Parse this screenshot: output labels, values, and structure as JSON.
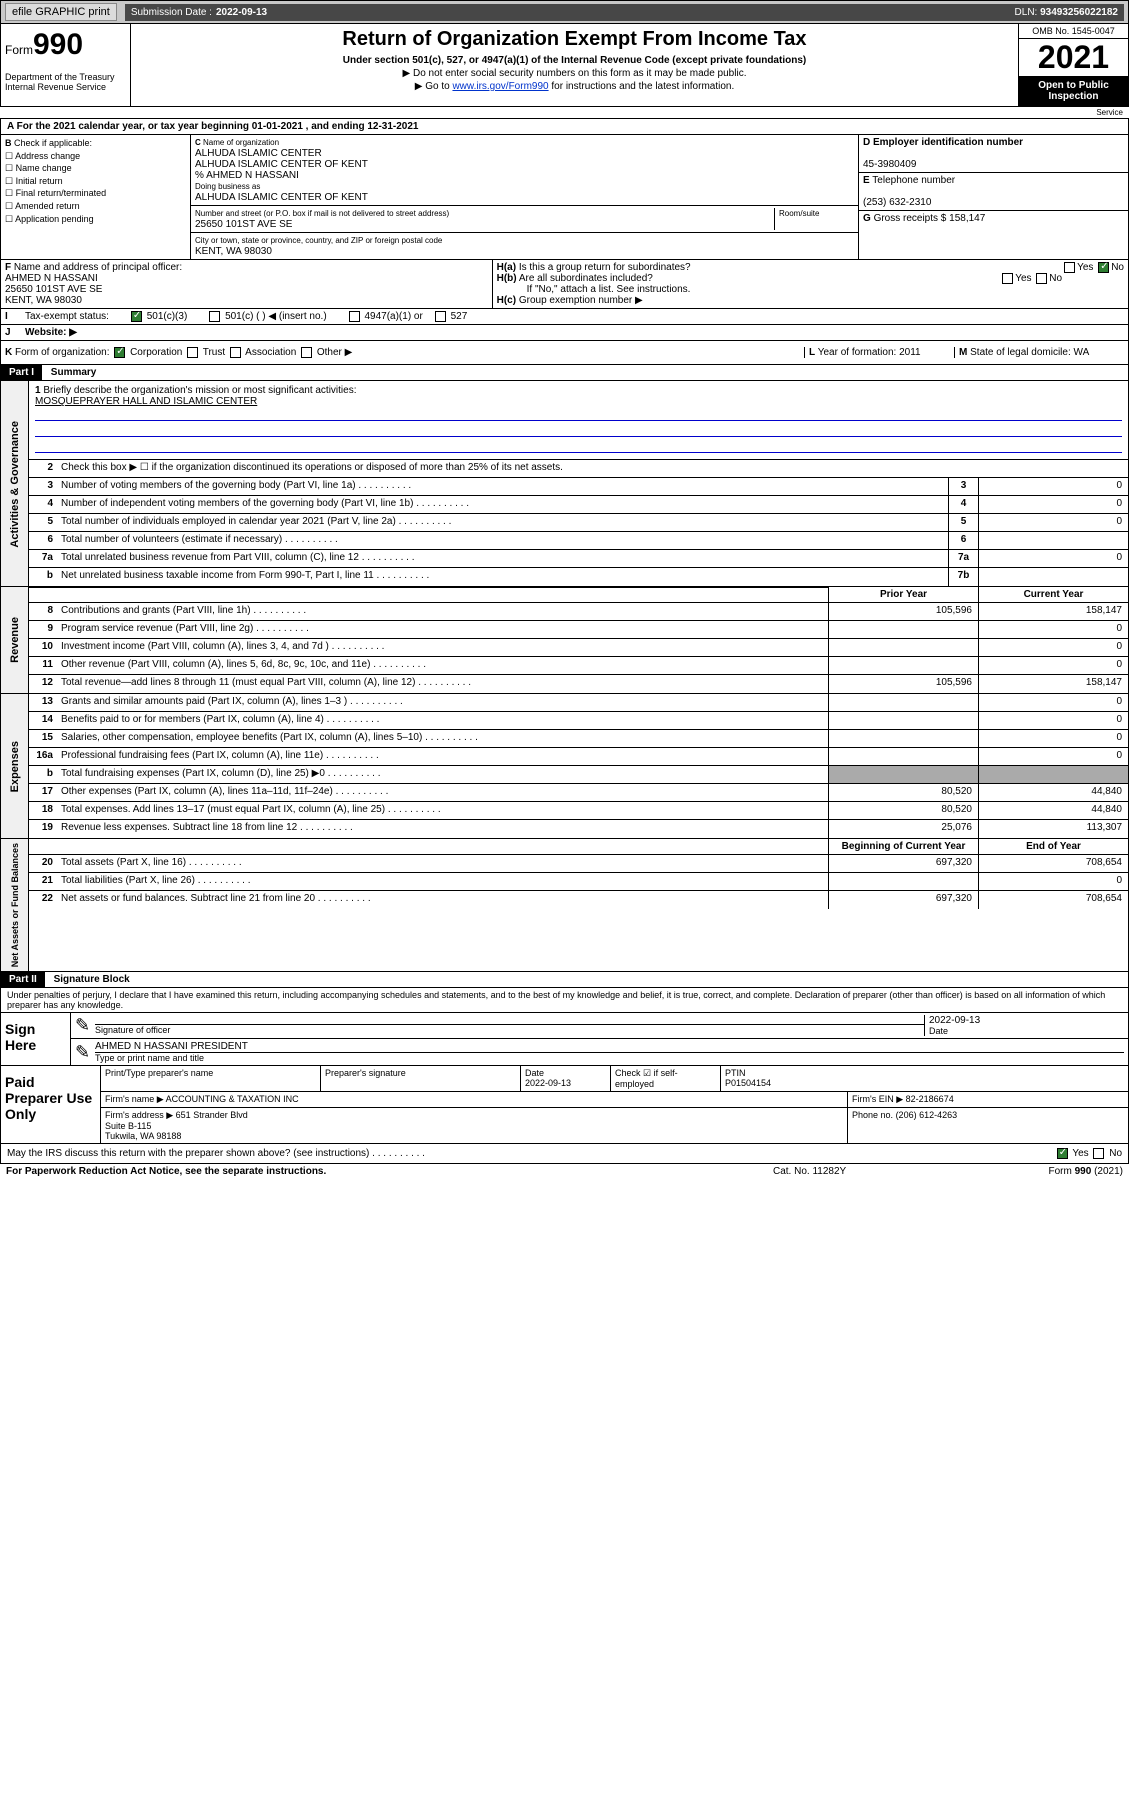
{
  "topbar": {
    "efile": "efile GRAPHIC print",
    "submission_label": "Submission Date :",
    "submission_date": "2022-09-13",
    "dln_label": "DLN:",
    "dln": "93493256022182"
  },
  "header": {
    "form_label": "Form",
    "form_number": "990",
    "dept": "Department of the Treasury",
    "irs": "Internal Revenue Service",
    "title": "Return of Organization Exempt From Income Tax",
    "sub": "Under section 501(c), 527, or 4947(a)(1) of the Internal Revenue Code (except private foundations)",
    "note1": "▶ Do not enter social security numbers on this form as it may be made public.",
    "note2_pre": "▶ Go to ",
    "note2_link": "www.irs.gov/Form990",
    "note2_post": " for instructions and the latest information.",
    "omb": "OMB No. 1545-0047",
    "year": "2021",
    "inspect": "Open to Public Inspection"
  },
  "period": {
    "text_a": "For the 2021 calendar year, or tax year beginning ",
    "begin": "01-01-2021",
    "text_b": " , and ending ",
    "end": "12-31-2021"
  },
  "b": {
    "label": "Check if applicable:",
    "items": [
      "Address change",
      "Name change",
      "Initial return",
      "Final return/terminated",
      "Amended return",
      "Application pending"
    ]
  },
  "c": {
    "name_label": "Name of organization",
    "name1": "ALHUDA ISLAMIC CENTER",
    "name2": "ALHUDA ISLAMIC CENTER OF KENT",
    "name3": "% AHMED N HASSANI",
    "dba_label": "Doing business as",
    "dba": "ALHUDA ISLAMIC CENTER OF KENT",
    "addr_label": "Number and street (or P.O. box if mail is not delivered to street address)",
    "room_label": "Room/suite",
    "addr": "25650 101ST AVE SE",
    "city_label": "City or town, state or province, country, and ZIP or foreign postal code",
    "city": "KENT, WA  98030"
  },
  "d": {
    "label": "Employer identification number",
    "value": "45-3980409"
  },
  "e": {
    "label": "Telephone number",
    "value": "(253) 632-2310"
  },
  "g": {
    "label": "Gross receipts $",
    "value": "158,147"
  },
  "f": {
    "label": "Name and address of principal officer:",
    "name": "AHMED N HASSANI",
    "addr": "25650 101ST AVE SE",
    "city": "KENT, WA  98030"
  },
  "h": {
    "a": "Is this a group return for subordinates?",
    "b": "Are all subordinates included?",
    "b_note": "If \"No,\" attach a list. See instructions.",
    "c": "Group exemption number ▶",
    "yes": "Yes",
    "no": "No"
  },
  "i": {
    "label": "Tax-exempt status:",
    "opts": [
      "501(c)(3)",
      "501(c) (  ) ◀ (insert no.)",
      "4947(a)(1) or",
      "527"
    ]
  },
  "j": {
    "label": "Website: ▶"
  },
  "k": {
    "label": "Form of organization:",
    "opts": [
      "Corporation",
      "Trust",
      "Association",
      "Other ▶"
    ]
  },
  "l": {
    "label": "Year of formation:",
    "value": "2011"
  },
  "m": {
    "label": "State of legal domicile:",
    "value": "WA"
  },
  "part1": {
    "hdr": "Part I",
    "title": "Summary",
    "q1": "Briefly describe the organization's mission or most significant activities:",
    "mission": "MOSQUEPRAYER HALL AND ISLAMIC CENTER",
    "q2": "Check this box ▶ ☐  if the organization discontinued its operations or disposed of more than 25% of its net assets.",
    "governance_label": "Activities & Governance",
    "revenue_label": "Revenue",
    "expenses_label": "Expenses",
    "netassets_label": "Net Assets or Fund Balances",
    "prior": "Prior Year",
    "current": "Current Year",
    "boy": "Beginning of Current Year",
    "eoy": "End of Year",
    "lines_gov": [
      {
        "n": "3",
        "t": "Number of voting members of the governing body (Part VI, line 1a)",
        "box": "3",
        "v": "0"
      },
      {
        "n": "4",
        "t": "Number of independent voting members of the governing body (Part VI, line 1b)",
        "box": "4",
        "v": "0"
      },
      {
        "n": "5",
        "t": "Total number of individuals employed in calendar year 2021 (Part V, line 2a)",
        "box": "5",
        "v": "0"
      },
      {
        "n": "6",
        "t": "Total number of volunteers (estimate if necessary)",
        "box": "6",
        "v": ""
      },
      {
        "n": "7a",
        "t": "Total unrelated business revenue from Part VIII, column (C), line 12",
        "box": "7a",
        "v": "0"
      },
      {
        "n": "b",
        "t": "Net unrelated business taxable income from Form 990-T, Part I, line 11",
        "box": "7b",
        "v": ""
      }
    ],
    "lines_rev": [
      {
        "n": "8",
        "t": "Contributions and grants (Part VIII, line 1h)",
        "p": "105,596",
        "c": "158,147"
      },
      {
        "n": "9",
        "t": "Program service revenue (Part VIII, line 2g)",
        "p": "",
        "c": "0"
      },
      {
        "n": "10",
        "t": "Investment income (Part VIII, column (A), lines 3, 4, and 7d )",
        "p": "",
        "c": "0"
      },
      {
        "n": "11",
        "t": "Other revenue (Part VIII, column (A), lines 5, 6d, 8c, 9c, 10c, and 11e)",
        "p": "",
        "c": "0"
      },
      {
        "n": "12",
        "t": "Total revenue—add lines 8 through 11 (must equal Part VIII, column (A), line 12)",
        "p": "105,596",
        "c": "158,147"
      }
    ],
    "lines_exp": [
      {
        "n": "13",
        "t": "Grants and similar amounts paid (Part IX, column (A), lines 1–3 )",
        "p": "",
        "c": "0"
      },
      {
        "n": "14",
        "t": "Benefits paid to or for members (Part IX, column (A), line 4)",
        "p": "",
        "c": "0"
      },
      {
        "n": "15",
        "t": "Salaries, other compensation, employee benefits (Part IX, column (A), lines 5–10)",
        "p": "",
        "c": "0"
      },
      {
        "n": "16a",
        "t": "Professional fundraising fees (Part IX, column (A), line 11e)",
        "p": "",
        "c": "0"
      },
      {
        "n": "b",
        "t": "Total fundraising expenses (Part IX, column (D), line 25) ▶0",
        "p": "shade",
        "c": "shade"
      },
      {
        "n": "17",
        "t": "Other expenses (Part IX, column (A), lines 11a–11d, 11f–24e)",
        "p": "80,520",
        "c": "44,840"
      },
      {
        "n": "18",
        "t": "Total expenses. Add lines 13–17 (must equal Part IX, column (A), line 25)",
        "p": "80,520",
        "c": "44,840"
      },
      {
        "n": "19",
        "t": "Revenue less expenses. Subtract line 18 from line 12",
        "p": "25,076",
        "c": "113,307"
      }
    ],
    "lines_net": [
      {
        "n": "20",
        "t": "Total assets (Part X, line 16)",
        "p": "697,320",
        "c": "708,654"
      },
      {
        "n": "21",
        "t": "Total liabilities (Part X, line 26)",
        "p": "",
        "c": "0"
      },
      {
        "n": "22",
        "t": "Net assets or fund balances. Subtract line 21 from line 20",
        "p": "697,320",
        "c": "708,654"
      }
    ]
  },
  "part2": {
    "hdr": "Part II",
    "title": "Signature Block",
    "decl": "Under penalties of perjury, I declare that I have examined this return, including accompanying schedules and statements, and to the best of my knowledge and belief, it is true, correct, and complete. Declaration of preparer (other than officer) is based on all information of which preparer has any knowledge.",
    "sign_here": "Sign Here",
    "sig_officer": "Signature of officer",
    "date": "Date",
    "date_val": "2022-09-13",
    "officer_name": "AHMED N HASSANI PRESIDENT",
    "type_name": "Type or print name and title",
    "paid": "Paid Preparer Use Only",
    "prep_name": "Print/Type preparer's name",
    "prep_sig": "Preparer's signature",
    "prep_date": "2022-09-13",
    "check_if": "Check ☑ if self-employed",
    "ptin_label": "PTIN",
    "ptin": "P01504154",
    "firm_name_label": "Firm's name   ▶",
    "firm_name": "ACCOUNTING & TAXATION INC",
    "firm_ein_label": "Firm's EIN ▶",
    "firm_ein": "82-2186674",
    "firm_addr_label": "Firm's address ▶",
    "firm_addr": "651 Strander Blvd\nSuite B-115\nTukwila, WA  98188",
    "phone_label": "Phone no.",
    "phone": "(206) 612-4263",
    "discuss": "May the IRS discuss this return with the preparer shown above? (see instructions)"
  },
  "footer": {
    "paperwork": "For Paperwork Reduction Act Notice, see the separate instructions.",
    "cat": "Cat. No. 11282Y",
    "form": "Form 990 (2021)"
  },
  "svc": "Service"
}
